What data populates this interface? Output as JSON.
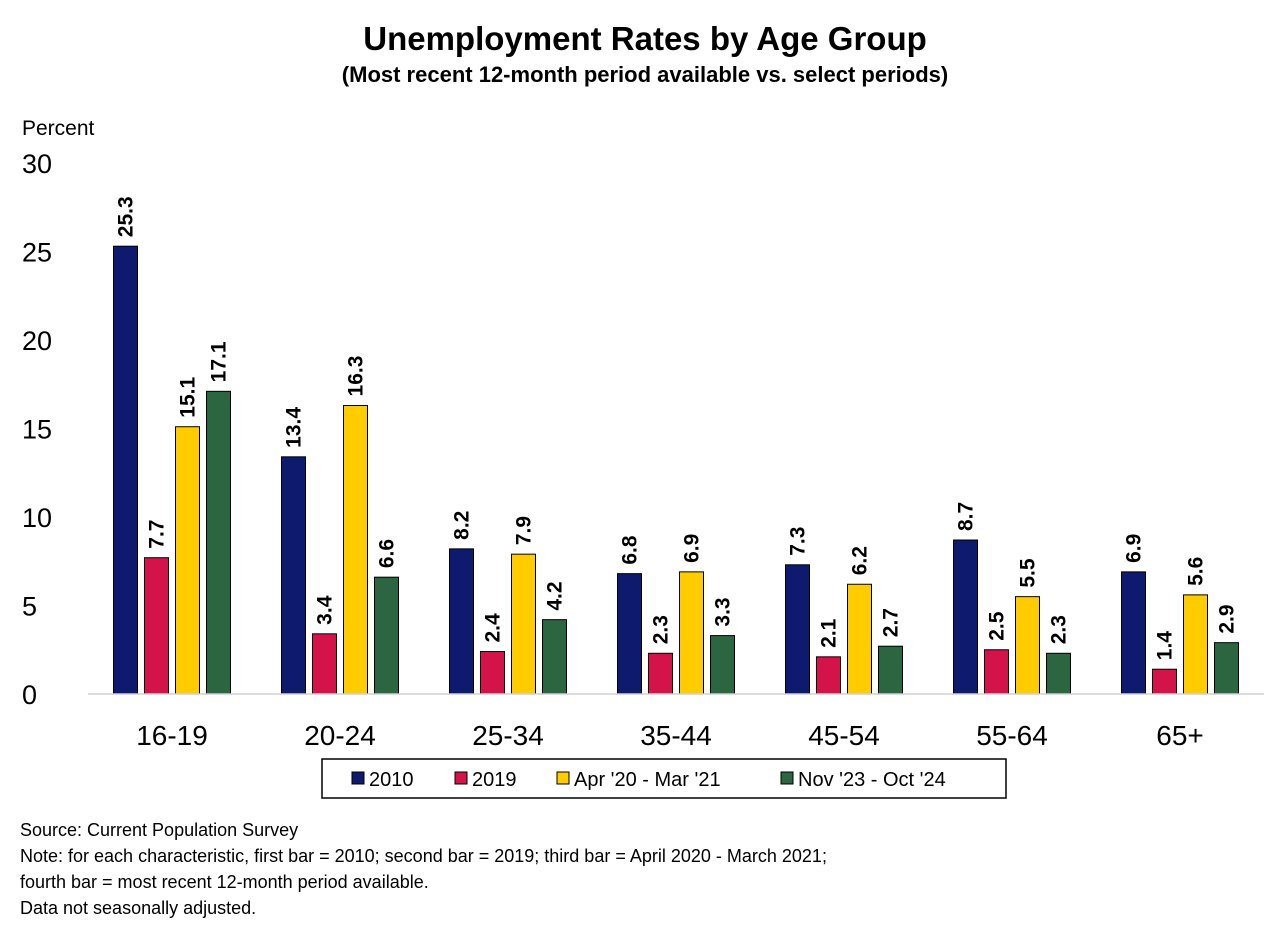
{
  "chart_data": {
    "type": "bar",
    "title": "Unemployment Rates by Age Group",
    "subtitle": "(Most recent 12-month period available vs. select periods)",
    "ylabel": "Percent",
    "ylim": [
      0,
      30
    ],
    "yticks": [
      0,
      5,
      10,
      15,
      20,
      25,
      30
    ],
    "grid": false,
    "legend_position": "bottom",
    "categories": [
      "16-19",
      "20-24",
      "25-34",
      "35-44",
      "45-54",
      "55-64",
      "65+"
    ],
    "series": [
      {
        "name": "2010",
        "color": "#0d1a6e",
        "values": [
          25.3,
          13.4,
          8.2,
          6.8,
          7.3,
          8.7,
          6.9
        ]
      },
      {
        "name": "2019",
        "color": "#d3134a",
        "values": [
          7.7,
          3.4,
          2.4,
          2.3,
          2.1,
          2.5,
          1.4
        ]
      },
      {
        "name": "Apr '20 - Mar '21",
        "color": "#ffcc00",
        "values": [
          15.1,
          16.3,
          7.9,
          6.9,
          6.2,
          5.5,
          5.6
        ]
      },
      {
        "name": "Nov '23 - Oct '24",
        "color": "#2b6640",
        "values": [
          17.1,
          6.6,
          4.2,
          3.3,
          2.7,
          2.3,
          2.9
        ]
      }
    ]
  },
  "footnotes": [
    "Source: Current Population Survey",
    "Note: for each characteristic, first bar = 2010; second bar = 2019; third bar = April 2020 - March 2021;",
    "fourth bar = most recent 12-month period available.",
    "Data not seasonally adjusted."
  ]
}
